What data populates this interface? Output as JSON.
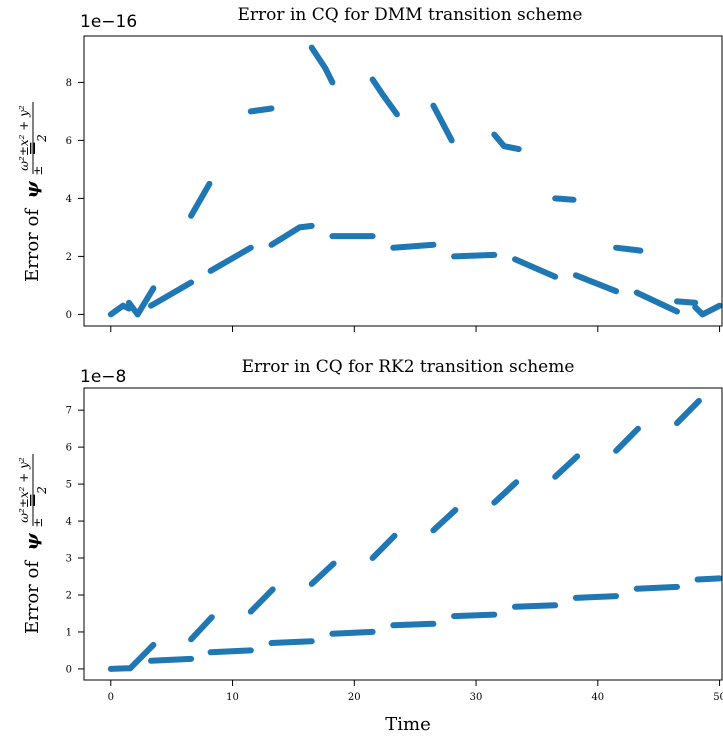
{
  "figure": {
    "xlabel": "Time",
    "series_color": "#1f77b4"
  },
  "chart_data": [
    {
      "type": "line",
      "title": "Error in CQ for DMM transition scheme",
      "offset_label": "1e−16",
      "ylabel_prefix": "Error of",
      "ylabel_symbol": "ψ",
      "ylabel_sub": "±",
      "ylabel_eq": "=",
      "ylabel_frac_num": "ω²±x² + y²",
      "ylabel_frac_den": "2",
      "xlim": [
        -2.2,
        50.2
      ],
      "ylim": [
        -0.4,
        9.6
      ],
      "xticks": [
        0,
        10,
        20,
        30,
        40,
        50
      ],
      "xtick_labels": [
        "",
        "",
        "",
        "",
        "",
        ""
      ],
      "yticks": [
        0,
        2,
        4,
        6,
        8
      ],
      "ytick_labels": [
        "0",
        "2",
        "4",
        "6",
        "8"
      ],
      "series": [
        {
          "segments": [
            [
              [
                0,
                0
              ],
              [
                1,
                0.3
              ],
              [
                1.5,
                0.2
              ]
            ],
            [
              [
                1.5,
                0.4
              ],
              [
                2.2,
                0.0
              ]
            ],
            [
              [
                2.2,
                0.0
              ],
              [
                3.5,
                0.9
              ]
            ],
            [
              [
                6.6,
                3.4
              ],
              [
                8.1,
                4.5
              ]
            ],
            [
              [
                11.5,
                7.0
              ],
              [
                13.2,
                7.1
              ]
            ],
            [
              [
                16.5,
                9.2
              ],
              [
                17.6,
                8.5
              ],
              [
                18.2,
                8.0
              ]
            ],
            [
              [
                21.5,
                8.1
              ],
              [
                22.3,
                7.6
              ],
              [
                23.5,
                6.9
              ]
            ],
            [
              [
                26.5,
                7.2
              ],
              [
                28.0,
                6.0
              ]
            ],
            [
              [
                31.5,
                6.2
              ],
              [
                32.3,
                5.8
              ],
              [
                33.5,
                5.7
              ]
            ],
            [
              [
                36.5,
                4.0
              ],
              [
                38.0,
                3.95
              ]
            ],
            [
              [
                41.5,
                2.3
              ],
              [
                43.5,
                2.2
              ]
            ],
            [
              [
                46.5,
                0.45
              ],
              [
                48.0,
                0.4
              ]
            ],
            [
              [
                48.0,
                0.25
              ],
              [
                48.6,
                0.0
              ],
              [
                50.0,
                0.3
              ]
            ]
          ]
        },
        {
          "segments": [
            [
              [
                3.3,
                0.3
              ],
              [
                6.6,
                1.1
              ]
            ],
            [
              [
                8.2,
                1.5
              ],
              [
                11.5,
                2.3
              ]
            ],
            [
              [
                13.2,
                2.4
              ],
              [
                15.5,
                3.0
              ],
              [
                16.5,
                3.05
              ]
            ],
            [
              [
                18.2,
                2.7
              ],
              [
                21.5,
                2.7
              ]
            ],
            [
              [
                23.2,
                2.3
              ],
              [
                26.5,
                2.4
              ]
            ],
            [
              [
                28.2,
                2.0
              ],
              [
                31.5,
                2.05
              ]
            ],
            [
              [
                33.2,
                1.9
              ],
              [
                36.5,
                1.3
              ]
            ],
            [
              [
                38.2,
                1.35
              ],
              [
                41.5,
                0.8
              ]
            ],
            [
              [
                43.2,
                0.75
              ],
              [
                46.5,
                0.1
              ]
            ]
          ]
        }
      ]
    },
    {
      "type": "line",
      "title": "Error in CQ for RK2 transition scheme",
      "offset_label": "1e−8",
      "ylabel_prefix": "Error of",
      "ylabel_symbol": "ψ",
      "ylabel_sub": "±",
      "ylabel_eq": "=",
      "ylabel_frac_num": "ω²±x² + y²",
      "ylabel_frac_den": "2",
      "xlim": [
        -2.2,
        50.2
      ],
      "ylim": [
        -0.3,
        7.6
      ],
      "xticks": [
        0,
        10,
        20,
        30,
        40,
        50
      ],
      "xtick_labels": [
        "0",
        "10",
        "20",
        "30",
        "40",
        "50"
      ],
      "yticks": [
        0,
        1,
        2,
        3,
        4,
        5,
        6,
        7
      ],
      "ytick_labels": [
        "0",
        "1",
        "2",
        "3",
        "4",
        "5",
        "6",
        "7"
      ],
      "series": [
        {
          "segments": [
            [
              [
                0,
                0
              ],
              [
                1.6,
                0.02
              ]
            ],
            [
              [
                1.6,
                0.02
              ],
              [
                3.5,
                0.65
              ]
            ],
            [
              [
                6.6,
                0.8
              ],
              [
                8.3,
                1.4
              ]
            ],
            [
              [
                11.5,
                1.55
              ],
              [
                13.3,
                2.15
              ]
            ],
            [
              [
                16.5,
                2.3
              ],
              [
                18.3,
                2.85
              ]
            ],
            [
              [
                21.5,
                3.0
              ],
              [
                23.3,
                3.6
              ]
            ],
            [
              [
                26.5,
                3.75
              ],
              [
                28.3,
                4.3
              ]
            ],
            [
              [
                31.5,
                4.5
              ],
              [
                33.3,
                5.05
              ]
            ],
            [
              [
                36.5,
                5.2
              ],
              [
                38.3,
                5.75
              ]
            ],
            [
              [
                41.5,
                5.9
              ],
              [
                43.3,
                6.5
              ]
            ],
            [
              [
                46.5,
                6.65
              ],
              [
                48.3,
                7.25
              ]
            ]
          ]
        },
        {
          "segments": [
            [
              [
                3.3,
                0.22
              ],
              [
                6.6,
                0.27
              ]
            ],
            [
              [
                8.2,
                0.45
              ],
              [
                11.5,
                0.5
              ]
            ],
            [
              [
                13.2,
                0.7
              ],
              [
                16.5,
                0.75
              ]
            ],
            [
              [
                18.2,
                0.95
              ],
              [
                21.5,
                1.0
              ]
            ],
            [
              [
                23.2,
                1.18
              ],
              [
                26.5,
                1.22
              ]
            ],
            [
              [
                28.2,
                1.43
              ],
              [
                31.5,
                1.47
              ]
            ],
            [
              [
                33.2,
                1.68
              ],
              [
                36.5,
                1.72
              ]
            ],
            [
              [
                38.2,
                1.92
              ],
              [
                41.5,
                1.97
              ]
            ],
            [
              [
                43.2,
                2.17
              ],
              [
                46.5,
                2.22
              ]
            ],
            [
              [
                48.2,
                2.42
              ],
              [
                50.0,
                2.45
              ]
            ]
          ]
        }
      ]
    }
  ]
}
